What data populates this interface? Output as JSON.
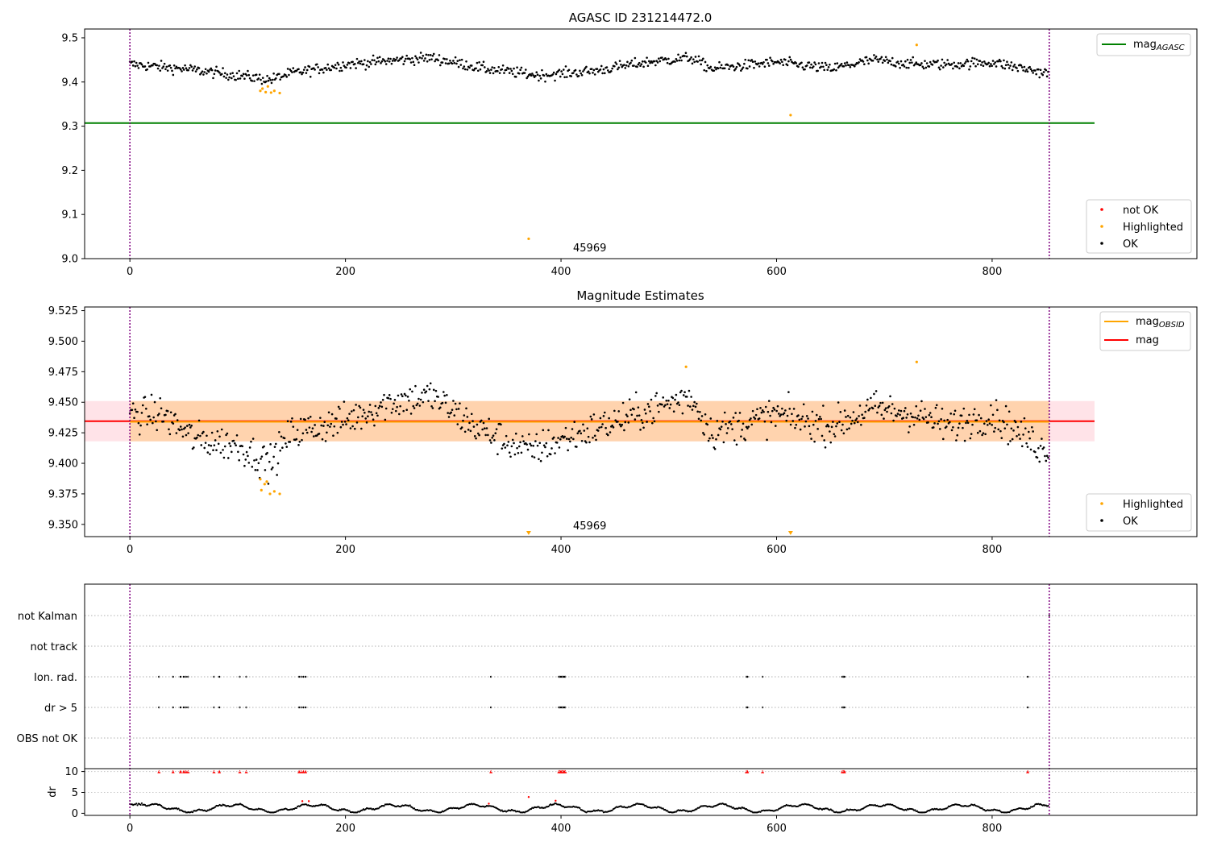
{
  "chart_data": [
    {
      "type": "scatter",
      "title": "AGASC ID 231214472.0",
      "xlim": [
        -42,
        990
      ],
      "ylim": [
        9.0,
        9.52
      ],
      "xticks": [
        0,
        200,
        400,
        600,
        800
      ],
      "yticks": [
        9.0,
        9.1,
        9.2,
        9.3,
        9.4,
        9.5
      ],
      "ytick_labels": [
        "9.0",
        "9.1",
        "9.2",
        "9.3",
        "9.4",
        "9.5"
      ],
      "vlines": [
        0,
        853
      ],
      "hline": {
        "name_main": "mag",
        "name_sub": "AGASC",
        "y": 9.307,
        "x_end": 895,
        "color": "#008000"
      },
      "annotation": {
        "text": "45969",
        "x": 410,
        "y": 9.015
      },
      "legend_line": {
        "position": "upper right"
      },
      "legend_points": {
        "position": "lower right",
        "entries": [
          {
            "label": "not OK",
            "color": "#ff0000"
          },
          {
            "label": "Highlighted",
            "color": "#ffa500"
          },
          {
            "label": "OK",
            "color": "#000000"
          }
        ]
      },
      "ok_series": {
        "color": "#000000",
        "n": 850,
        "trend_x": [
          0,
          50,
          100,
          130,
          150,
          200,
          250,
          280,
          330,
          380,
          430,
          480,
          520,
          540,
          600,
          650,
          690,
          730,
          760,
          800,
          850
        ],
        "trend_y": [
          9.44,
          9.43,
          9.415,
          9.405,
          9.42,
          9.44,
          9.45,
          9.455,
          9.43,
          9.415,
          9.425,
          9.445,
          9.455,
          9.43,
          9.445,
          9.43,
          9.45,
          9.44,
          9.44,
          9.445,
          9.42
        ],
        "noise": 0.012
      },
      "highlighted": {
        "color": "#ffa500",
        "points": [
          [
            121,
            9.38
          ],
          [
            123,
            9.385
          ],
          [
            126,
            9.377
          ],
          [
            128,
            9.39
          ],
          [
            131,
            9.376
          ],
          [
            134,
            9.38
          ],
          [
            139,
            9.375
          ],
          [
            370,
            9.045
          ],
          [
            613,
            9.325
          ],
          [
            730,
            9.484
          ]
        ]
      }
    },
    {
      "type": "scatter",
      "title": "Magnitude Estimates",
      "xlim": [
        -42,
        990
      ],
      "ylim": [
        9.34,
        9.528
      ],
      "xticks": [
        0,
        200,
        400,
        600,
        800
      ],
      "yticks": [
        9.35,
        9.375,
        9.4,
        9.425,
        9.45,
        9.475,
        9.5,
        9.525
      ],
      "ytick_labels": [
        "9.350",
        "9.375",
        "9.400",
        "9.425",
        "9.450",
        "9.475",
        "9.500",
        "9.525"
      ],
      "vlines": [
        0,
        853
      ],
      "mag_line": {
        "name": "mag",
        "y": 9.4345,
        "band": [
          9.418,
          9.451
        ],
        "x_end": 895,
        "color": "#ff0000",
        "band_color": "#ffc0cb"
      },
      "mag_obsid": {
        "name_main": "mag",
        "name_sub": "OBSID",
        "y": 9.434,
        "band": [
          9.418,
          9.451
        ],
        "x_start": 0,
        "x_end": 853,
        "color": "#ffa500"
      },
      "annotation": {
        "text": "45969",
        "x": 410,
        "y": 9.345
      },
      "legend_line": {
        "position": "upper right"
      },
      "legend_points": {
        "position": "lower right",
        "entries": [
          {
            "label": "Highlighted",
            "color": "#ffa500"
          },
          {
            "label": "OK",
            "color": "#000000"
          }
        ]
      },
      "ok_series": {
        "color": "#000000",
        "n": 850,
        "trend_x": [
          0,
          30,
          60,
          100,
          130,
          150,
          200,
          240,
          280,
          320,
          370,
          420,
          470,
          520,
          540,
          600,
          650,
          690,
          730,
          760,
          800,
          850
        ],
        "trend_y": [
          9.44,
          9.44,
          9.42,
          9.415,
          9.4,
          9.425,
          9.435,
          9.45,
          9.455,
          9.43,
          9.41,
          9.425,
          9.44,
          9.455,
          9.425,
          9.44,
          9.43,
          9.445,
          9.44,
          9.43,
          9.44,
          9.41
        ],
        "noise": 0.014
      },
      "highlighted": {
        "color": "#ffa500",
        "points": [
          [
            121,
            9.387
          ],
          [
            122,
            9.378
          ],
          [
            125,
            9.383
          ],
          [
            127,
            9.385
          ],
          [
            130,
            9.375
          ],
          [
            134,
            9.377
          ],
          [
            139,
            9.375
          ],
          [
            516,
            9.479
          ],
          [
            730,
            9.483
          ]
        ]
      },
      "clipped": {
        "color": "#ffa500",
        "x": [
          370,
          613
        ]
      }
    },
    {
      "type": "scatter",
      "xlim": [
        -42,
        990
      ],
      "xticks": [
        0,
        200,
        400,
        600,
        800
      ],
      "vlines": [
        0,
        853
      ],
      "flag_rows": [
        "not Kalman",
        "not track",
        "Ion. rad.",
        "dr > 5",
        "OBS not OK"
      ],
      "flag_events": [
        27,
        40,
        47,
        50,
        52,
        54,
        78,
        83,
        102,
        108,
        157,
        159,
        161,
        163,
        335,
        398,
        399,
        400,
        401,
        402,
        403,
        404,
        572,
        573,
        587,
        661,
        662,
        663,
        833
      ],
      "not_kalman_points": [
        853
      ],
      "dr_series": {
        "ylabel": "dr",
        "ylim": [
          -0.5,
          10.5
        ],
        "yticks": [
          0,
          5,
          10
        ],
        "ytick_labels": [
          "0",
          "5",
          "10"
        ],
        "threshold": 10,
        "ok_color": "#000000",
        "flag_color": "#ff0000",
        "outliers": [
          [
            160,
            2.9
          ],
          [
            166,
            2.9
          ],
          [
            370,
            3.9
          ],
          [
            395,
            3.0
          ],
          [
            333,
            2.3
          ]
        ],
        "n": 850
      }
    }
  ]
}
